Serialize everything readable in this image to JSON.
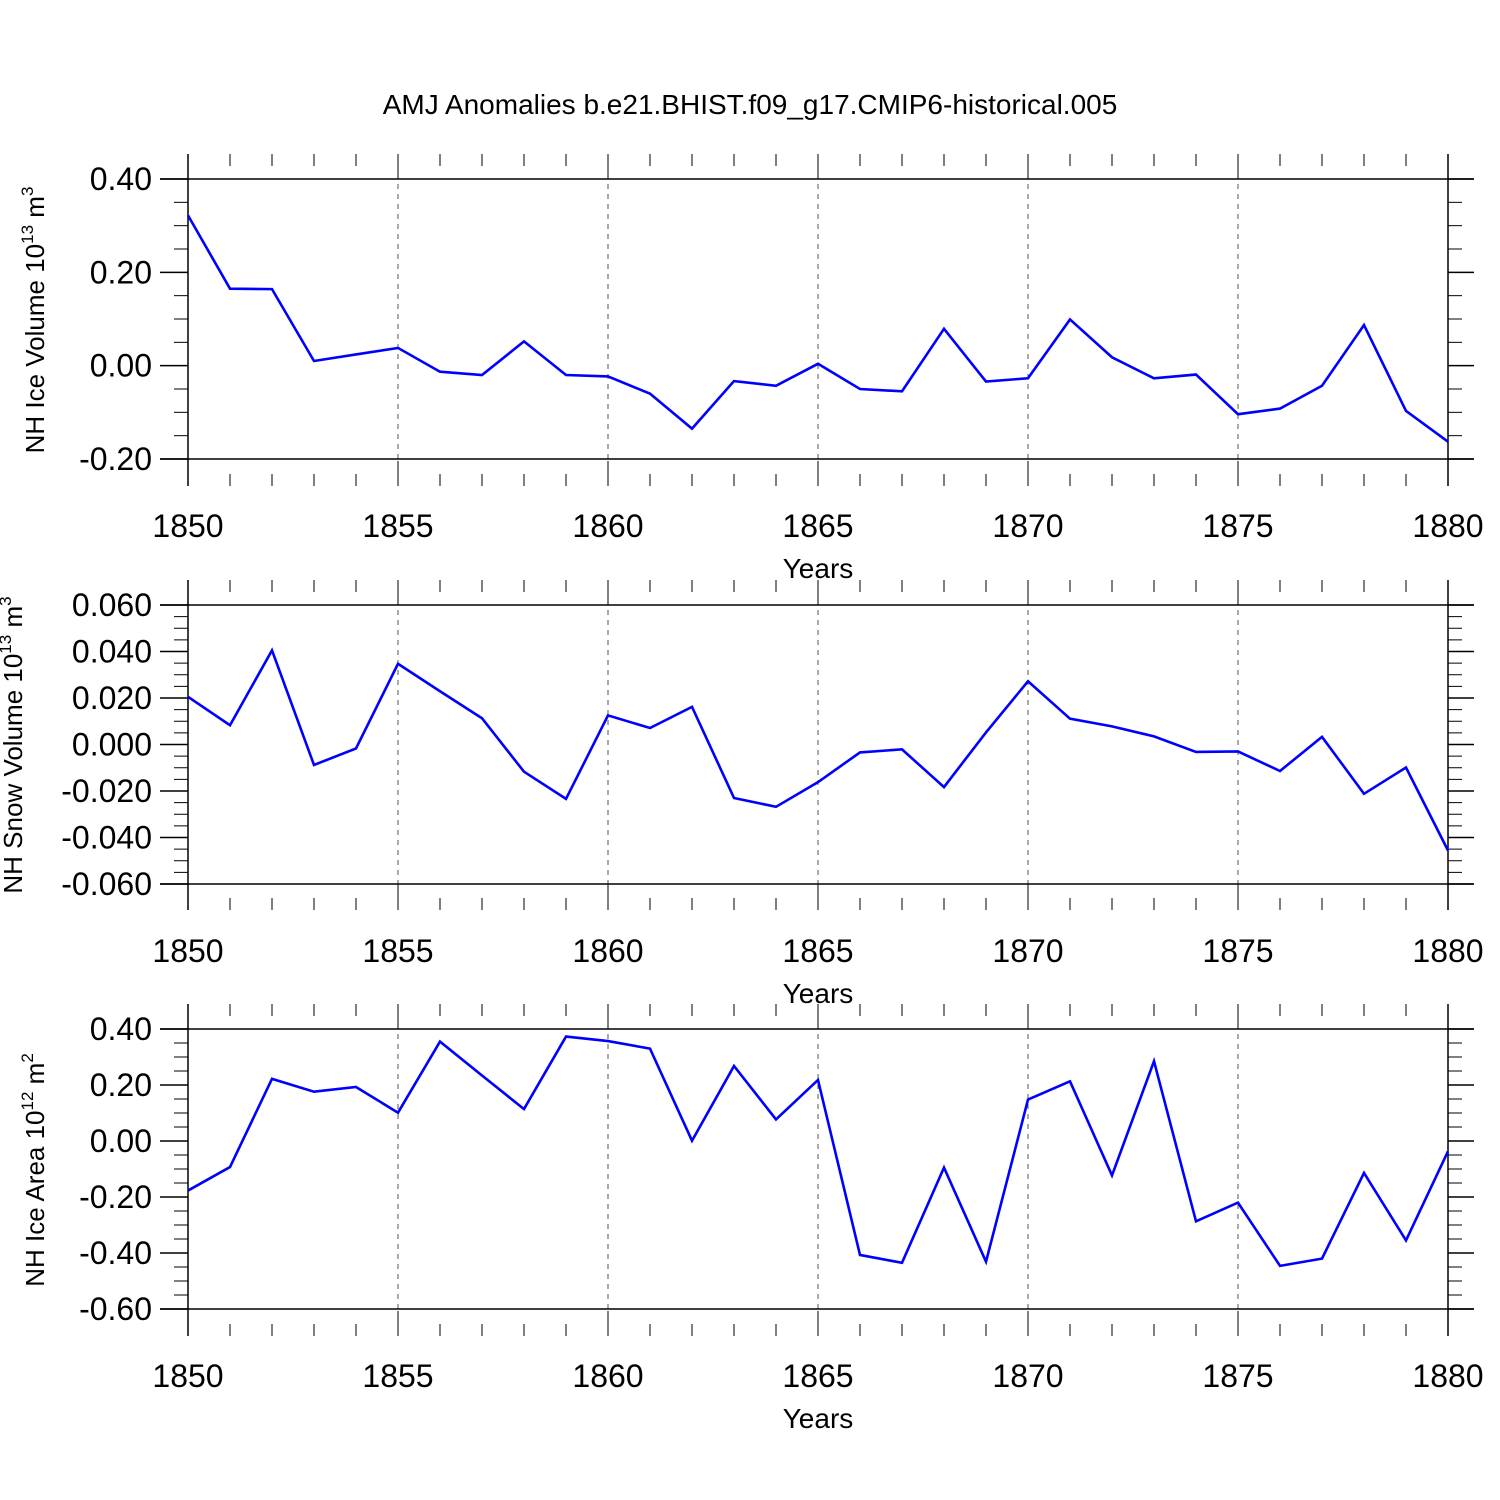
{
  "title": "AMJ Anomalies b.e21.BHIST.f09_g17.CMIP6-historical.005",
  "colors": {
    "series": "#0000ff",
    "axis": "#000000",
    "grid": "#555555"
  },
  "chart_data": [
    {
      "type": "line",
      "xlabel": "Years",
      "ylabel_main": "NH Ice Volume 10",
      "ylabel_exp": "13",
      "ylabel_unit": " m",
      "ylabel_unit_exp": "3",
      "xlim": [
        1850,
        1880
      ],
      "ylim": [
        -0.2,
        0.4
      ],
      "yticks": [
        "-0.20",
        "0.00",
        "0.20",
        "0.40"
      ],
      "ytick_values": [
        -0.2,
        0.0,
        0.2,
        0.4
      ],
      "xticks": [
        "1850",
        "1855",
        "1860",
        "1865",
        "1870",
        "1875",
        "1880"
      ],
      "xtick_values": [
        1850,
        1855,
        1860,
        1865,
        1870,
        1875,
        1880
      ],
      "series": [
        {
          "name": "NH Ice Volume",
          "x": [
            1850,
            1851,
            1852,
            1853,
            1854,
            1855,
            1856,
            1857,
            1858,
            1859,
            1860,
            1861,
            1862,
            1863,
            1864,
            1865,
            1866,
            1867,
            1868,
            1869,
            1870,
            1871,
            1872,
            1873,
            1874,
            1875,
            1876,
            1877,
            1878,
            1879,
            1880
          ],
          "values": [
            0.322,
            0.165,
            0.164,
            0.01,
            0.024,
            0.038,
            -0.013,
            -0.02,
            0.052,
            -0.02,
            -0.023,
            -0.06,
            -0.135,
            -0.033,
            -0.043,
            0.004,
            -0.05,
            -0.055,
            0.079,
            -0.034,
            -0.027,
            0.099,
            0.018,
            -0.027,
            -0.019,
            -0.104,
            -0.092,
            -0.043,
            0.087,
            -0.097,
            -0.163
          ]
        }
      ]
    },
    {
      "type": "line",
      "xlabel": "Years",
      "ylabel_main": "NH Snow Volume 10",
      "ylabel_exp": "13",
      "ylabel_unit": " m",
      "ylabel_unit_exp": "3",
      "xlim": [
        1850,
        1880
      ],
      "ylim": [
        -0.06,
        0.06
      ],
      "yticks": [
        "-0.060",
        "-0.040",
        "-0.020",
        "0.000",
        "0.020",
        "0.040",
        "0.060"
      ],
      "ytick_values": [
        -0.06,
        -0.04,
        -0.02,
        0.0,
        0.02,
        0.04,
        0.06
      ],
      "xticks": [
        "1850",
        "1855",
        "1860",
        "1865",
        "1870",
        "1875",
        "1880"
      ],
      "xtick_values": [
        1850,
        1855,
        1860,
        1865,
        1870,
        1875,
        1880
      ],
      "series": [
        {
          "name": "NH Snow Volume",
          "x": [
            1850,
            1851,
            1852,
            1853,
            1854,
            1855,
            1856,
            1857,
            1858,
            1859,
            1860,
            1861,
            1862,
            1863,
            1864,
            1865,
            1866,
            1867,
            1868,
            1869,
            1870,
            1871,
            1872,
            1873,
            1874,
            1875,
            1876,
            1877,
            1878,
            1879,
            1880
          ],
          "values": [
            0.0205,
            0.0083,
            0.0405,
            -0.0088,
            -0.0017,
            0.0347,
            0.0229,
            0.0113,
            -0.0117,
            -0.0234,
            0.0125,
            0.0071,
            0.0162,
            -0.023,
            -0.0268,
            -0.0162,
            -0.0034,
            -0.0021,
            -0.0183,
            0.0052,
            0.0272,
            0.0111,
            0.0078,
            0.0035,
            -0.0032,
            -0.003,
            -0.0114,
            0.0033,
            -0.0212,
            -0.0099,
            -0.0456
          ]
        }
      ]
    },
    {
      "type": "line",
      "xlabel": "Years",
      "ylabel_main": "NH Ice Area 10",
      "ylabel_exp": "12",
      "ylabel_unit": " m",
      "ylabel_unit_exp": "2",
      "xlim": [
        1850,
        1880
      ],
      "ylim": [
        -0.6,
        0.4
      ],
      "yticks": [
        "-0.60",
        "-0.40",
        "-0.20",
        "0.00",
        "0.20",
        "0.40"
      ],
      "ytick_values": [
        -0.6,
        -0.4,
        -0.2,
        0.0,
        0.2,
        0.4
      ],
      "xticks": [
        "1850",
        "1855",
        "1860",
        "1865",
        "1870",
        "1875",
        "1880"
      ],
      "xtick_values": [
        1850,
        1855,
        1860,
        1865,
        1870,
        1875,
        1880
      ],
      "series": [
        {
          "name": "NH Ice Area",
          "x": [
            1850,
            1851,
            1852,
            1853,
            1854,
            1855,
            1856,
            1857,
            1858,
            1859,
            1860,
            1861,
            1862,
            1863,
            1864,
            1865,
            1866,
            1867,
            1868,
            1869,
            1870,
            1871,
            1872,
            1873,
            1874,
            1875,
            1876,
            1877,
            1878,
            1879,
            1880
          ],
          "values": [
            -0.177,
            -0.093,
            0.222,
            0.176,
            0.193,
            0.101,
            0.355,
            0.234,
            0.114,
            0.373,
            0.357,
            0.33,
            0.001,
            0.268,
            0.077,
            0.218,
            -0.407,
            -0.435,
            -0.095,
            -0.431,
            0.148,
            0.213,
            -0.123,
            0.285,
            -0.287,
            -0.22,
            -0.446,
            -0.42,
            -0.114,
            -0.355,
            -0.037
          ]
        }
      ]
    }
  ]
}
